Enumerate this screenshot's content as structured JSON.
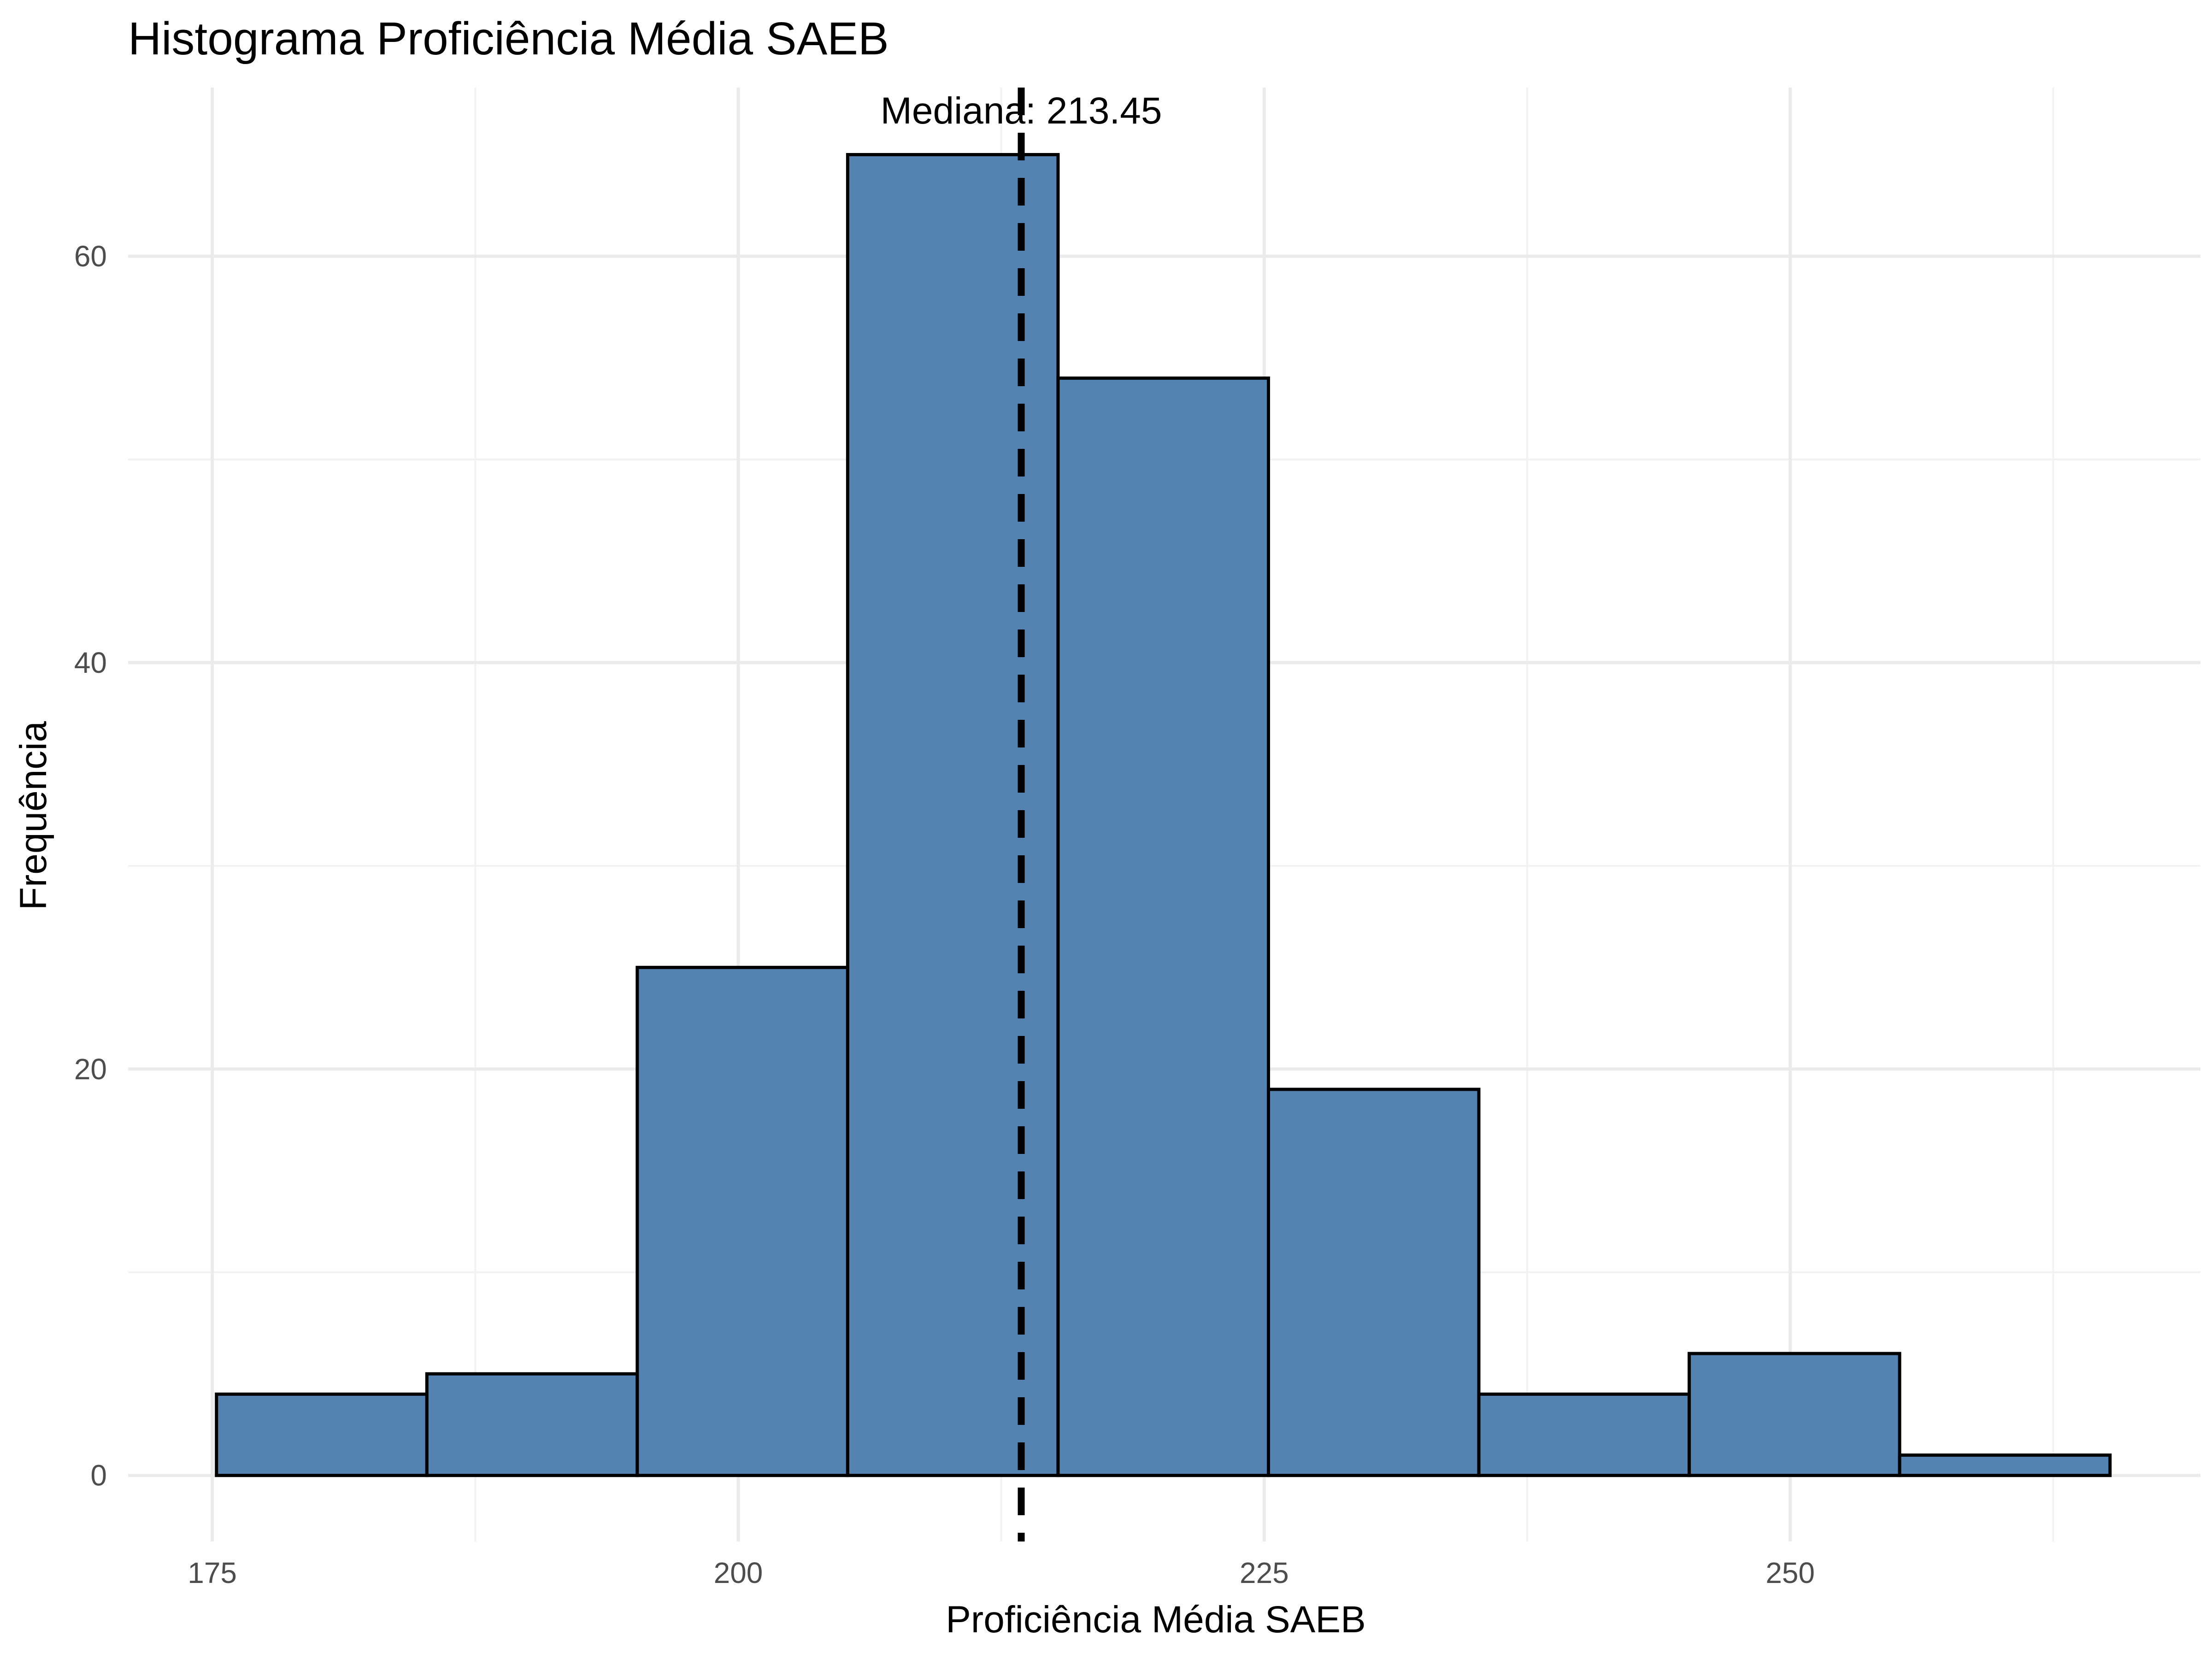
{
  "chart_data": {
    "type": "histogram",
    "title": "Histograma Proficiência Média SAEB",
    "xlabel": "Proficiência Média SAEB",
    "ylabel": "Frequência",
    "bin_width": 10,
    "bins": [
      {
        "start": 175.2,
        "end": 185.2,
        "count": 4
      },
      {
        "start": 185.2,
        "end": 195.2,
        "count": 5
      },
      {
        "start": 195.2,
        "end": 205.2,
        "count": 25
      },
      {
        "start": 205.2,
        "end": 215.2,
        "count": 65
      },
      {
        "start": 215.2,
        "end": 225.2,
        "count": 54
      },
      {
        "start": 225.2,
        "end": 235.2,
        "count": 19
      },
      {
        "start": 235.2,
        "end": 245.2,
        "count": 4
      },
      {
        "start": 245.2,
        "end": 255.2,
        "count": 6
      },
      {
        "start": 255.2,
        "end": 265.2,
        "count": 1
      }
    ],
    "median": 213.45,
    "median_label": "Mediana: 213.45",
    "xlim": [
      171,
      269.5
    ],
    "ylim": [
      -3.25,
      68.3
    ],
    "x_ticks": [
      175,
      200,
      225,
      250
    ],
    "y_ticks": [
      0,
      20,
      40,
      60
    ],
    "x_minor": [
      187.5,
      212.5,
      237.5,
      262.5
    ],
    "y_minor": [
      10,
      30,
      50
    ],
    "grid": true,
    "legend": "none",
    "colors": {
      "bar_fill": "#4e7eae",
      "bar_stroke": "#000000",
      "median_line": "#000000",
      "grid": "#ebebeb"
    }
  }
}
